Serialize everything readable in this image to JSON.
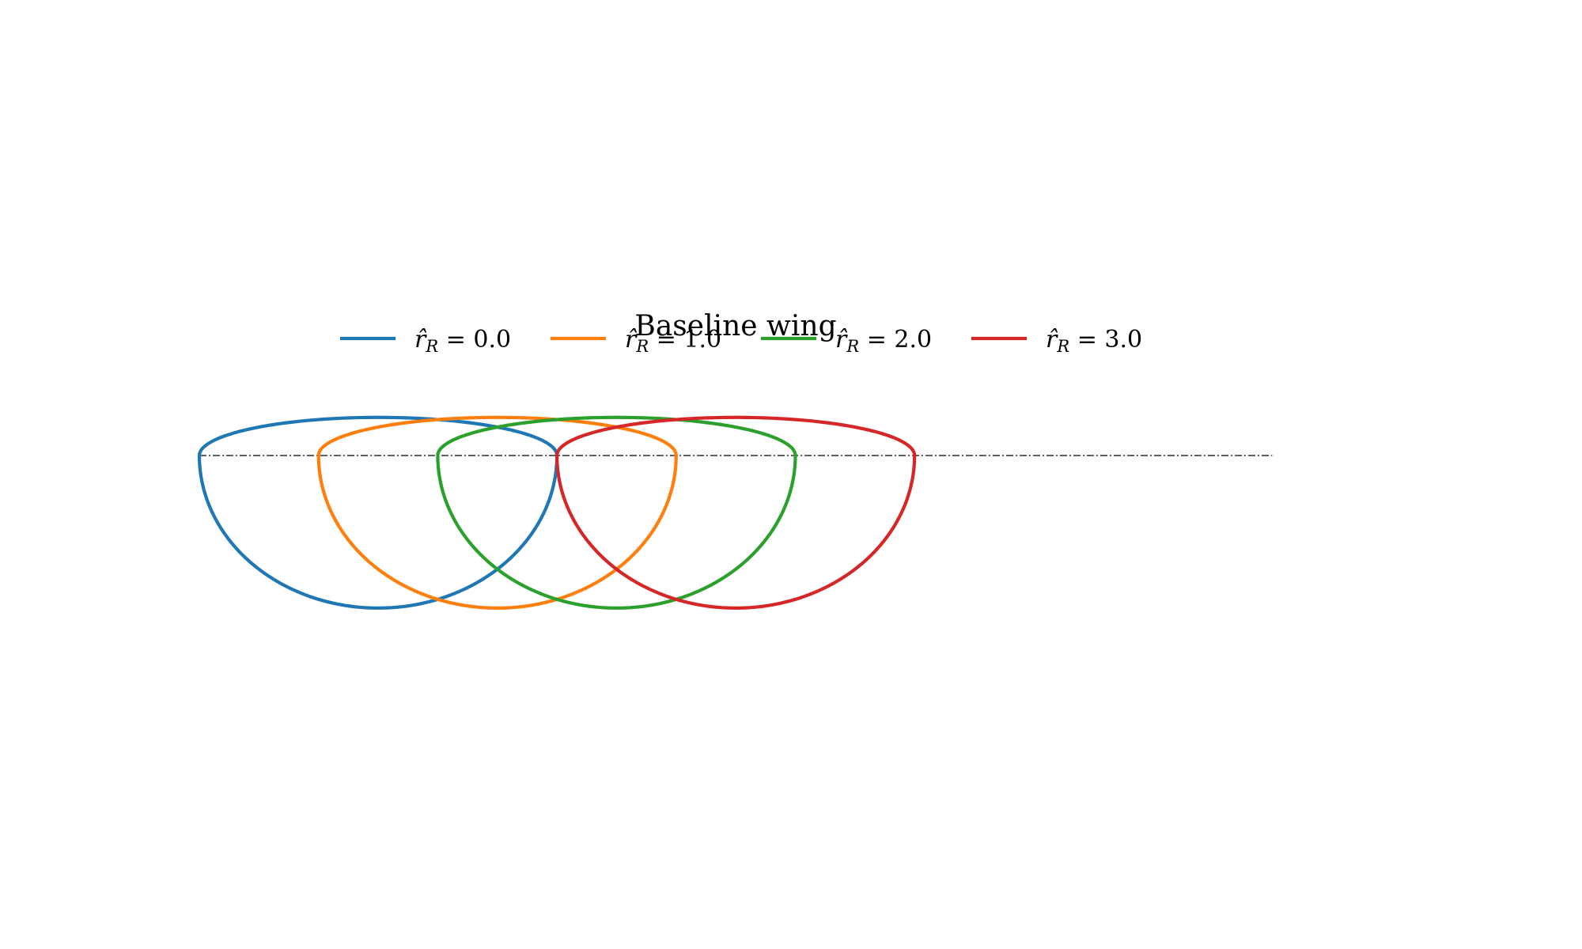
{
  "chart_data": {
    "type": "line",
    "title": "Baseline wing",
    "xlabel": "",
    "ylabel": "",
    "axes_visible": false,
    "grid": false,
    "aspect": "equal",
    "xlim": [
      -0.1,
      9.0
    ],
    "ylim": [
      -2.9,
      3.45
    ],
    "legend": {
      "placement": "top-center",
      "ncol": 4
    },
    "reference_line": {
      "style": "dash-dot",
      "color": "#000000",
      "y": 0.0,
      "x_start": 0.0,
      "x_end": 9.0
    },
    "planform": {
      "semi_span": 3.0,
      "leading_edge_extent": 0.32,
      "trailing_edge_extent": -1.28
    },
    "series": [
      {
        "name": "r̂_R = 0.0",
        "label_parts": [
          "r̂",
          "R",
          " = 0.0"
        ],
        "color": "#1f77b4",
        "offset": 0.0
      },
      {
        "name": "r̂_R = 1.0",
        "label_parts": [
          "r̂",
          "R",
          " = 1.0"
        ],
        "color": "#ff7f0e",
        "offset": 1.0
      },
      {
        "name": "r̂_R = 2.0",
        "label_parts": [
          "r̂",
          "R",
          " = 2.0"
        ],
        "color": "#2ca02c",
        "offset": 2.0
      },
      {
        "name": "r̂_R = 3.0",
        "label_parts": [
          "r̂",
          "R",
          " = 3.0"
        ],
        "color": "#d62728",
        "offset": 3.0
      }
    ]
  }
}
